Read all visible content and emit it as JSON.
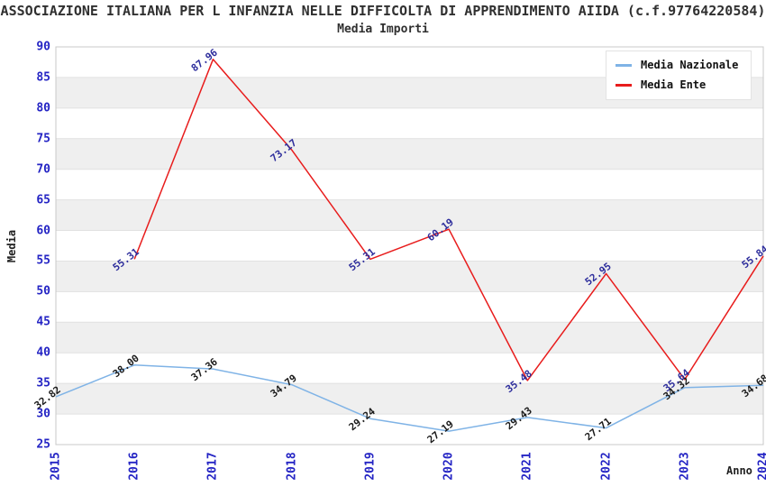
{
  "header": {
    "title": "ASSOCIAZIONE ITALIANA PER L INFANZIA NELLE DIFFICOLTA DI APPRENDIMENTO AIIDA (c.f.97764220584)",
    "subtitle": "Media Importi"
  },
  "chart_data": {
    "type": "line",
    "title": "Media Importi",
    "xlabel": "Anno",
    "ylabel": "Media",
    "ylim": [
      25,
      90
    ],
    "ytick_step": 5,
    "grid": "horizontal-bands",
    "legend_position": "top-right",
    "categories": [
      "2015",
      "2016",
      "2017",
      "2018",
      "2019",
      "2020",
      "2021",
      "2022",
      "2023",
      "2024"
    ],
    "series": [
      {
        "name": "Media Nazionale",
        "color": "#7fb3e6",
        "label_color": "#1a1a1a",
        "values": [
          32.82,
          38.0,
          37.36,
          34.79,
          29.24,
          27.19,
          29.43,
          27.71,
          34.32,
          34.68
        ]
      },
      {
        "name": "Media Ente",
        "color": "#e81c1c",
        "label_color": "#2d2d9c",
        "values": [
          null,
          55.31,
          87.96,
          73.17,
          55.31,
          60.19,
          35.48,
          52.95,
          35.64,
          55.84
        ]
      }
    ],
    "style": {
      "tick_color": "#2424c4",
      "band_color": "#efefef",
      "band_alt_color": "#ffffff",
      "grid_color": "#e1e1e1",
      "border_color": "#c8c8c8",
      "title_color": "#303030"
    }
  }
}
